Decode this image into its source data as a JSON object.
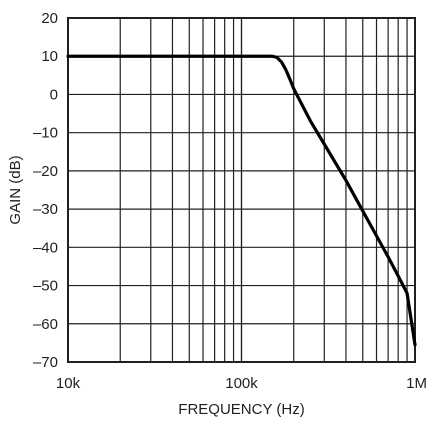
{
  "chart_data": {
    "type": "line",
    "title": "",
    "xlabel": "FREQUENCY (Hz)",
    "ylabel": "GAIN (dB)",
    "x_scale": "log",
    "xlim": [
      10000,
      1000000
    ],
    "ylim": [
      -70,
      20
    ],
    "grid": true,
    "x_ticks": [
      {
        "value": 10000,
        "label": "10k"
      },
      {
        "value": 100000,
        "label": "100k"
      },
      {
        "value": 1000000,
        "label": "1M"
      }
    ],
    "y_ticks": [
      {
        "value": 20,
        "label": "20"
      },
      {
        "value": 10,
        "label": "10"
      },
      {
        "value": 0,
        "label": "0"
      },
      {
        "value": -10,
        "label": "–10"
      },
      {
        "value": -20,
        "label": "–20"
      },
      {
        "value": -30,
        "label": "–30"
      },
      {
        "value": -40,
        "label": "–40"
      },
      {
        "value": -50,
        "label": "–50"
      },
      {
        "value": -60,
        "label": "–60"
      },
      {
        "value": -70,
        "label": "–70"
      }
    ],
    "series": [
      {
        "color": "#000000",
        "x": [
          10000,
          100000,
          150000,
          160000,
          170000,
          180000,
          190000,
          200000,
          250000,
          300000,
          400000,
          500000,
          600000,
          700000,
          800000,
          900000,
          1000000
        ],
        "y": [
          10,
          10,
          10,
          9.7,
          8.5,
          6.5,
          4,
          1.5,
          -7,
          -13,
          -22.5,
          -30.5,
          -37,
          -42.5,
          -47.5,
          -52,
          -65.5
        ]
      }
    ]
  }
}
